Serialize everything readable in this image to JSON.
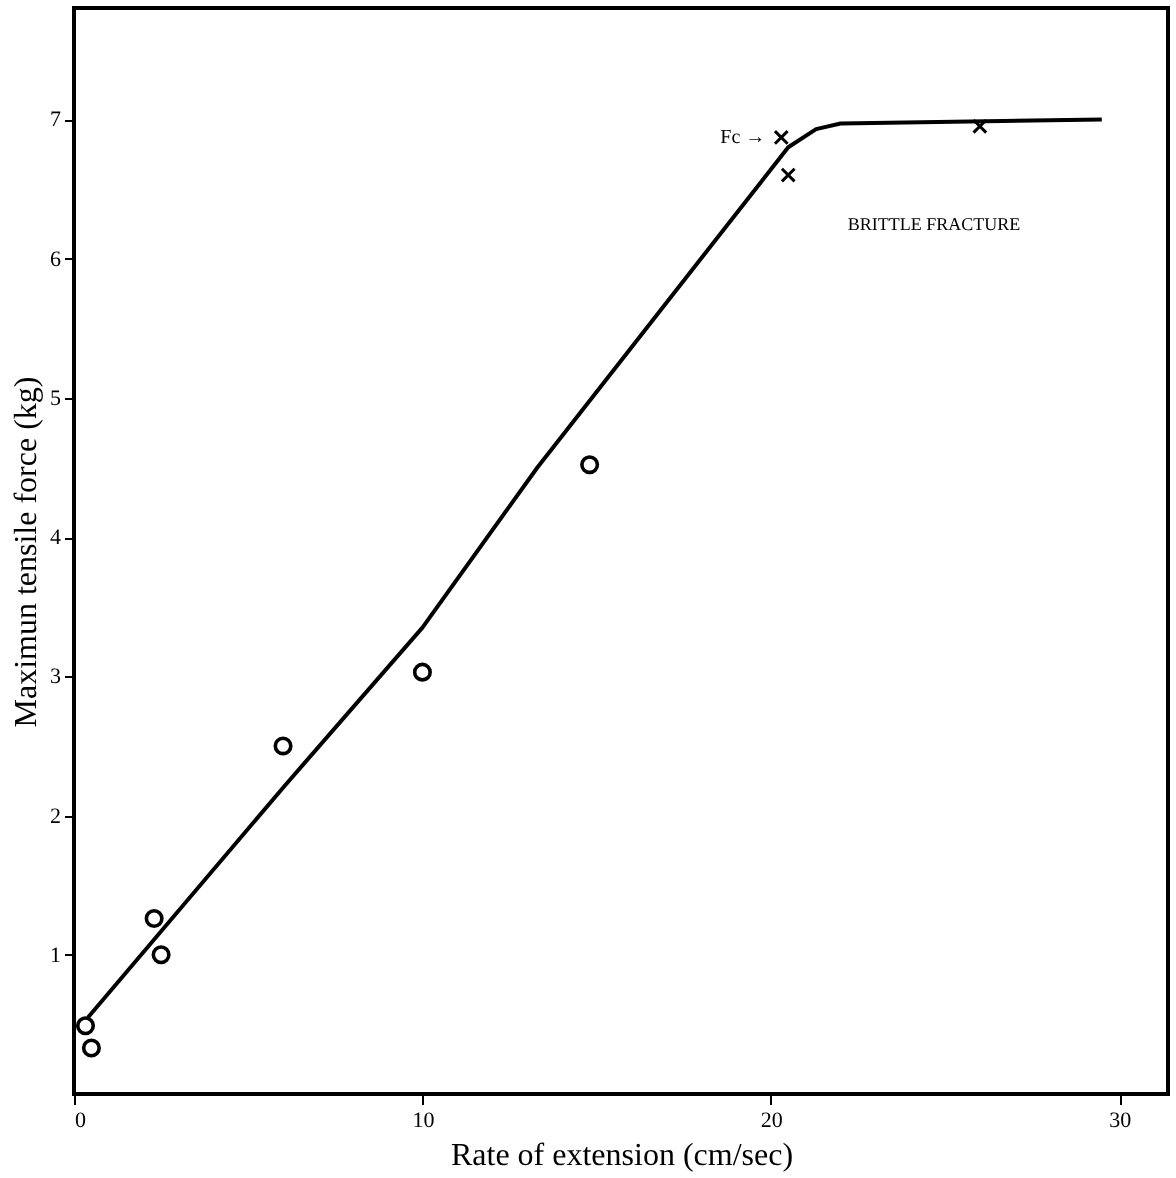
{
  "chart_data": {
    "type": "scatter",
    "xlabel": "Rate of extension (cm/sec)",
    "ylabel": "Maximun tensile force (kg)",
    "xlim": [
      0,
      31.4
    ],
    "ylim": [
      0,
      7.8
    ],
    "xticks": [
      0,
      10,
      20,
      30
    ],
    "yticks": [
      1,
      2,
      3,
      4,
      5,
      6,
      7
    ],
    "grid": false,
    "series": [
      {
        "marker": "circle",
        "color": "#000000",
        "x": [
          0.33,
          0.5,
          2.3,
          2.5,
          6.0,
          10.0,
          14.8
        ],
        "values": [
          0.49,
          0.33,
          1.26,
          1.0,
          2.5,
          3.03,
          4.52
        ]
      },
      {
        "marker": "cross",
        "color": "#000000",
        "x": [
          20.3,
          20.5,
          26.0
        ],
        "values": [
          6.87,
          6.6,
          6.95
        ]
      },
      {
        "type": "line",
        "marker": "none",
        "line_style": "solid",
        "color": "#000000",
        "x": [
          0.4,
          6,
          10,
          13.3,
          20.5,
          21.3,
          22,
          29.5
        ],
        "values": [
          0.55,
          2.2,
          3.35,
          4.5,
          6.8,
          6.93,
          6.97,
          7.0
        ]
      }
    ],
    "annotations": [
      {
        "text": "Fc →",
        "x": 20.3,
        "y": 6.87
      },
      "BRITTLE FRACTURE"
    ]
  }
}
